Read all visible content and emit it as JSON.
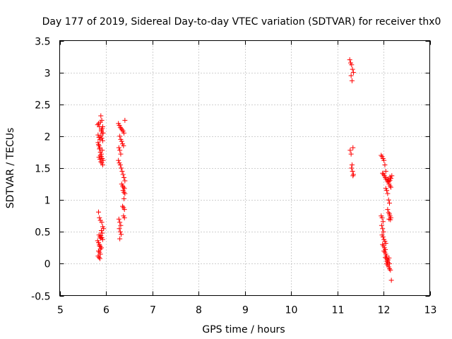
{
  "chart_data": {
    "type": "scatter",
    "title": "Day 177 of 2019, Sidereal Day-to-day VTEC variation (SDTVAR) for receiver thx0",
    "xlabel": "GPS time / hours",
    "ylabel": "SDTVAR / TECUs",
    "xlim": [
      5,
      13
    ],
    "ylim": [
      -0.5,
      3.5
    ],
    "xticks": [
      "5",
      "6",
      "7",
      "8",
      "9",
      "10",
      "11",
      "12",
      "13"
    ],
    "yticks": [
      "-0.5",
      "0",
      "0.5",
      "1",
      "1.5",
      "2",
      "2.5",
      "3",
      "3.5"
    ],
    "grid": true,
    "marker": "+",
    "color": "#ff0000",
    "series": [
      {
        "name": "SDTVAR",
        "x": [
          5.82,
          5.84,
          5.86,
          5.88,
          5.9,
          5.92,
          5.94,
          5.83,
          5.85,
          5.87,
          5.89,
          5.91,
          5.93,
          5.84,
          5.86,
          5.88,
          5.9,
          5.92,
          5.85,
          5.87,
          5.89,
          5.91,
          5.93,
          5.88,
          5.9,
          5.92,
          5.94,
          5.89,
          5.91,
          5.93,
          5.83,
          5.85,
          5.87,
          5.9,
          5.92,
          5.84,
          5.86,
          5.88,
          5.91,
          5.93,
          5.95,
          5.85,
          5.87,
          5.89,
          5.82,
          5.84,
          5.86,
          5.88,
          5.9,
          5.84,
          5.86,
          5.88,
          5.83,
          5.85,
          5.87,
          5.9,
          5.92,
          5.89,
          5.91,
          5.93,
          5.86,
          5.88,
          6.27,
          6.29,
          6.31,
          6.33,
          6.35,
          6.37,
          6.39,
          6.3,
          6.32,
          6.34,
          6.36,
          6.38,
          6.28,
          6.3,
          6.32,
          6.27,
          6.29,
          6.31,
          6.33,
          6.35,
          6.37,
          6.39,
          6.41,
          6.34,
          6.36,
          6.38,
          6.4,
          6.37,
          6.39,
          6.41,
          6.36,
          6.38,
          6.4,
          6.28,
          6.3,
          6.32,
          6.29,
          6.31,
          6.33,
          6.3,
          6.38,
          6.4,
          6.39,
          6.41,
          11.27,
          11.29,
          11.31,
          11.33,
          11.35,
          11.3,
          11.32,
          11.34,
          11.28,
          11.3,
          11.32,
          11.31,
          11.33,
          11.35,
          11.34,
          11.95,
          11.97,
          11.99,
          12.01,
          12.03,
          12.05,
          11.98,
          12.0,
          12.02,
          12.04,
          12.06,
          12.08,
          12.1,
          12.12,
          12.14,
          12.16,
          12.05,
          12.07,
          12.09,
          12.11,
          12.13,
          12.09,
          12.11,
          12.13,
          12.14,
          12.16,
          12.12,
          12.15,
          11.95,
          11.97,
          11.99,
          11.96,
          11.98,
          12.0,
          11.97,
          11.99,
          12.01,
          12.03,
          12.05,
          11.98,
          12.0,
          12.02,
          12.04,
          12.01,
          12.03,
          12.05,
          12.07,
          12.04,
          12.06,
          12.08,
          12.1,
          12.07,
          12.09,
          12.11,
          12.13,
          12.08,
          12.1,
          12.12,
          12.14,
          12.1,
          12.12,
          12.14,
          12.16,
          12.18,
          12.13,
          12.15,
          12.17
        ],
        "y": [
          2.18,
          2.2,
          2.15,
          2.22,
          2.08,
          2.12,
          2.05,
          2.02,
          1.98,
          1.95,
          2.0,
          1.97,
          1.93,
          1.87,
          1.8,
          1.75,
          1.72,
          1.78,
          1.67,
          1.64,
          1.6,
          1.58,
          1.55,
          1.7,
          1.68,
          1.65,
          1.62,
          2.32,
          2.25,
          2.15,
          1.9,
          1.85,
          1.82,
          2.1,
          2.05,
          0.81,
          0.72,
          0.68,
          0.65,
          0.58,
          0.55,
          0.45,
          0.42,
          0.4,
          0.36,
          0.33,
          0.3,
          0.27,
          0.25,
          0.2,
          0.18,
          0.15,
          0.12,
          0.1,
          0.08,
          0.52,
          0.48,
          0.44,
          0.41,
          0.38,
          0.28,
          0.23,
          2.2,
          2.17,
          2.14,
          2.12,
          2.1,
          2.08,
          2.05,
          2.0,
          1.95,
          1.92,
          1.88,
          1.85,
          1.82,
          1.78,
          1.72,
          1.62,
          1.58,
          1.55,
          1.5,
          1.45,
          1.4,
          1.35,
          1.3,
          1.25,
          1.22,
          1.2,
          1.18,
          1.15,
          1.12,
          1.1,
          0.9,
          0.88,
          0.85,
          0.7,
          0.65,
          0.6,
          0.55,
          0.5,
          0.46,
          0.39,
          0.75,
          0.72,
          1.02,
          2.25,
          3.2,
          3.15,
          3.12,
          3.05,
          3.0,
          2.95,
          2.87,
          1.82,
          1.78,
          1.72,
          1.55,
          1.5,
          1.45,
          1.4,
          1.38,
          1.7,
          1.68,
          1.65,
          1.62,
          1.55,
          1.45,
          1.42,
          1.4,
          1.38,
          1.35,
          1.33,
          1.3,
          1.28,
          1.25,
          1.22,
          1.2,
          1.18,
          1.15,
          1.1,
          1.0,
          0.95,
          0.85,
          0.8,
          0.78,
          0.75,
          0.72,
          0.7,
          0.69,
          0.75,
          0.72,
          0.66,
          0.6,
          0.55,
          0.5,
          0.45,
          0.42,
          0.38,
          0.35,
          0.32,
          0.3,
          0.28,
          0.25,
          0.22,
          0.2,
          0.18,
          0.15,
          0.12,
          0.1,
          0.08,
          0.05,
          0.02,
          0.0,
          -0.02,
          -0.05,
          -0.08,
          0.03,
          0.06,
          0.09,
          1.36,
          1.32,
          1.29,
          1.31,
          1.34,
          1.38,
          0.0,
          -0.1,
          -0.26
        ]
      }
    ]
  }
}
